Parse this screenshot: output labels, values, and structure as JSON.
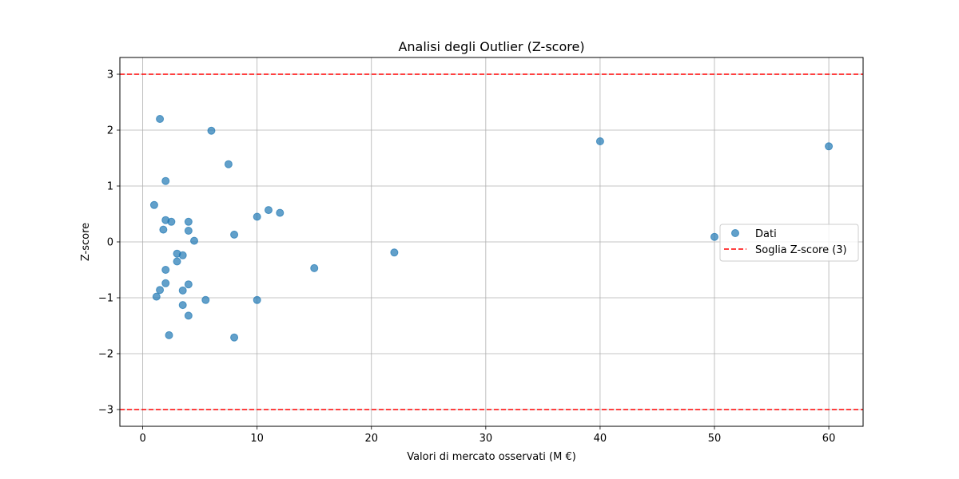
{
  "chart_data": {
    "type": "scatter",
    "title": "Analisi degli Outlier (Z-score)",
    "xlabel": "Valori di mercato osservati (M €)",
    "ylabel": "Z-score",
    "xlim": [
      -2,
      63
    ],
    "ylim": [
      -3.3,
      3.3
    ],
    "xticks": [
      0,
      10,
      20,
      30,
      40,
      50,
      60
    ],
    "yticks": [
      -3,
      -2,
      -1,
      0,
      1,
      2,
      3
    ],
    "grid": true,
    "legend_position": "center-right",
    "series": [
      {
        "name": "Dati",
        "color": "#1f77b4",
        "points": [
          {
            "x": 1.5,
            "y": 2.2
          },
          {
            "x": 6.0,
            "y": 1.99
          },
          {
            "x": 7.5,
            "y": 1.39
          },
          {
            "x": 2.0,
            "y": 1.09
          },
          {
            "x": 1.0,
            "y": 0.66
          },
          {
            "x": 2.0,
            "y": 0.39
          },
          {
            "x": 2.5,
            "y": 0.36
          },
          {
            "x": 4.0,
            "y": 0.36
          },
          {
            "x": 1.8,
            "y": 0.22
          },
          {
            "x": 4.0,
            "y": 0.2
          },
          {
            "x": 4.5,
            "y": 0.02
          },
          {
            "x": 8.0,
            "y": 0.13
          },
          {
            "x": 10.0,
            "y": 0.45
          },
          {
            "x": 11.0,
            "y": 0.57
          },
          {
            "x": 12.0,
            "y": 0.52
          },
          {
            "x": 3.0,
            "y": -0.21
          },
          {
            "x": 3.5,
            "y": -0.24
          },
          {
            "x": 3.0,
            "y": -0.35
          },
          {
            "x": 2.0,
            "y": -0.5
          },
          {
            "x": 2.0,
            "y": -0.74
          },
          {
            "x": 4.0,
            "y": -0.76
          },
          {
            "x": 1.5,
            "y": -0.86
          },
          {
            "x": 3.5,
            "y": -0.87
          },
          {
            "x": 1.2,
            "y": -0.98
          },
          {
            "x": 5.5,
            "y": -1.04
          },
          {
            "x": 10.0,
            "y": -1.04
          },
          {
            "x": 3.5,
            "y": -1.13
          },
          {
            "x": 4.0,
            "y": -1.32
          },
          {
            "x": 2.3,
            "y": -1.67
          },
          {
            "x": 8.0,
            "y": -1.71
          },
          {
            "x": 15.0,
            "y": -0.47
          },
          {
            "x": 22.0,
            "y": -0.19
          },
          {
            "x": 40.0,
            "y": 1.8
          },
          {
            "x": 50.0,
            "y": 0.09
          },
          {
            "x": 60.0,
            "y": 1.71
          }
        ]
      }
    ],
    "thresholds": {
      "name": "Soglia Z-score (3)",
      "color": "#ff0000",
      "values": [
        3,
        -3
      ]
    }
  }
}
